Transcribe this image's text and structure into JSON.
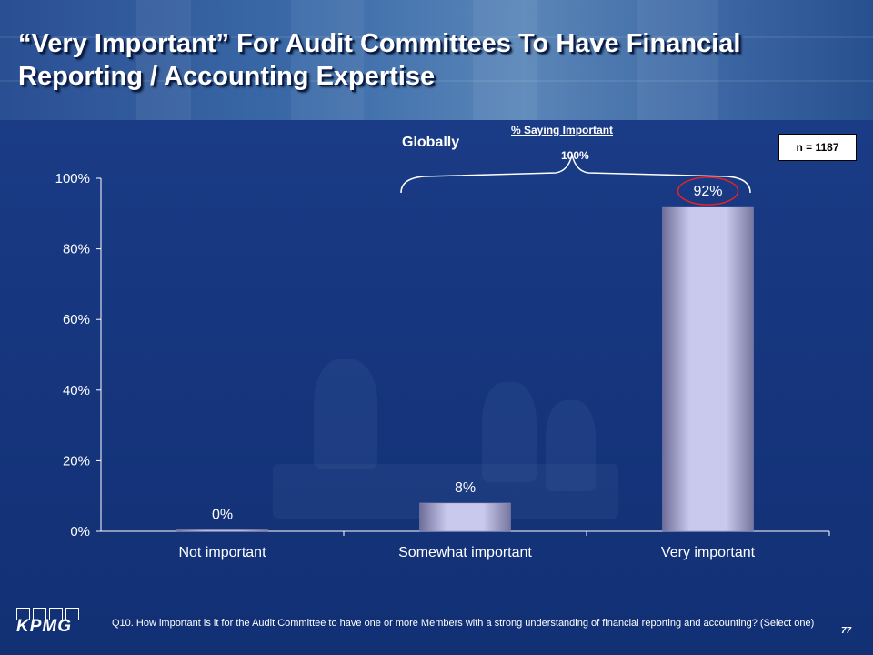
{
  "title": {
    "line1": "“Very Important” For Audit Committees To Have Financial",
    "line2": "Reporting / Accounting Expertise"
  },
  "globally_label": "Globally",
  "summary": {
    "title": "% Saying Important",
    "value": "100%"
  },
  "sample": "n = 1187",
  "footer": {
    "question": "Q10. How important is it for the Audit Committee to have one or more Members with a strong understanding of financial reporting and accounting? (Select one)",
    "page": "77",
    "logo_text": "KPMG"
  },
  "colors": {
    "background": "#173781",
    "bar": "#c9c9ee",
    "highlight_circle": "#e0242a"
  },
  "chart_data": {
    "type": "bar",
    "categories": [
      "Not important",
      "Somewhat important",
      "Very important"
    ],
    "values": [
      0,
      8,
      92
    ],
    "data_labels": [
      "0%",
      "8%",
      "92%"
    ],
    "ylim": [
      0,
      100
    ],
    "yticks": [
      "0%",
      "20%",
      "40%",
      "60%",
      "80%",
      "100%"
    ],
    "xlabel": "",
    "ylabel": "",
    "highlighted_category": "Very important"
  }
}
